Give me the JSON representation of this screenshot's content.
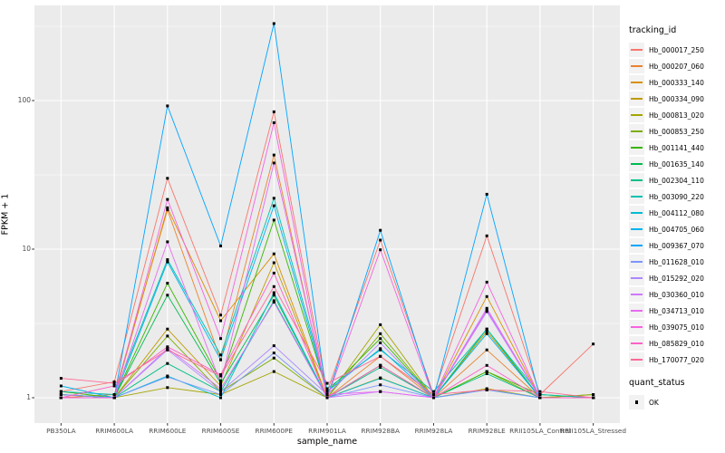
{
  "figure": {
    "xlabel": "sample_name",
    "ylabel": "FPKM + 1",
    "legend": {
      "tracking_title": "tracking_id",
      "quant_title": "quant_status",
      "ok_label": "OK"
    }
  },
  "colors": {
    "panel_bg": "#EBEBEB",
    "grid": "#FFFFFF",
    "tick_label": "#4D4D4D",
    "point": "#000000",
    "legend_key_bg": "#F2F2F2"
  },
  "chart_data": {
    "type": "line",
    "title": "",
    "xlabel": "sample_name",
    "ylabel": "FPKM + 1",
    "y_scale": "log10",
    "ylim": [
      1,
      440
    ],
    "y_ticks": [
      1,
      10,
      100
    ],
    "y_minor_ticks": [
      3.162,
      31.62,
      316.2
    ],
    "grid": true,
    "legend_position": "right",
    "point_marker": "black-square",
    "categories": [
      "PB350LA",
      "RRIM600LA",
      "RRIM600LE",
      "RRIM600SE",
      "RRIM600PE",
      "RRIM901LA",
      "RRIM928BA",
      "RRIM928LA",
      "RRIM928LE",
      "RRII105LA_Control",
      "RRII105LA_Stressed"
    ],
    "series": [
      {
        "name": "Hb_000017_250",
        "color": "#F8766D",
        "values": [
          1.1,
          1.28,
          30.0,
          3.6,
          84.0,
          1.1,
          11.5,
          1.05,
          12.3,
          1.05,
          2.3
        ]
      },
      {
        "name": "Hb_000207_060",
        "color": "#EA8331",
        "values": [
          1.0,
          1.05,
          18.4,
          1.8,
          43.0,
          1.0,
          1.9,
          1.0,
          2.1,
          1.0,
          1.0
        ]
      },
      {
        "name": "Hb_000333_140",
        "color": "#D89000",
        "values": [
          1.05,
          1.0,
          19.0,
          3.3,
          9.3,
          1.0,
          1.65,
          1.0,
          4.8,
          1.0,
          1.0
        ]
      },
      {
        "name": "Hb_000334_090",
        "color": "#C09B00",
        "values": [
          1.0,
          1.0,
          2.9,
          1.2,
          8.1,
          1.0,
          1.36,
          1.0,
          2.8,
          1.0,
          1.0
        ]
      },
      {
        "name": "Hb_000813_020",
        "color": "#A3A500",
        "values": [
          1.0,
          1.0,
          1.17,
          1.05,
          1.5,
          1.0,
          3.1,
          1.0,
          1.15,
          1.0,
          1.05
        ]
      },
      {
        "name": "Hb_000853_250",
        "color": "#7CAE00",
        "values": [
          1.05,
          1.0,
          2.6,
          1.1,
          1.85,
          1.0,
          2.7,
          1.0,
          1.5,
          1.0,
          1.05
        ]
      },
      {
        "name": "Hb_001141_440",
        "color": "#39B600",
        "values": [
          1.1,
          1.0,
          5.9,
          1.3,
          15.7,
          1.1,
          2.5,
          1.0,
          1.5,
          1.05,
          1.0
        ]
      },
      {
        "name": "Hb_001635_140",
        "color": "#00BB4E",
        "values": [
          1.05,
          1.0,
          4.9,
          1.25,
          4.9,
          1.0,
          1.65,
          1.0,
          2.9,
          1.0,
          1.0
        ]
      },
      {
        "name": "Hb_002304_110",
        "color": "#00C087",
        "values": [
          1.0,
          1.0,
          1.7,
          1.1,
          4.5,
          1.0,
          1.6,
          1.0,
          1.45,
          1.0,
          1.0
        ]
      },
      {
        "name": "Hb_003090_220",
        "color": "#00C0B2",
        "values": [
          1.1,
          1.05,
          8.5,
          1.94,
          22.0,
          1.15,
          2.1,
          1.1,
          2.9,
          1.05,
          1.0
        ]
      },
      {
        "name": "Hb_004112_080",
        "color": "#00BDD2",
        "values": [
          1.0,
          1.0,
          1.4,
          1.0,
          5.1,
          1.0,
          1.35,
          1.0,
          1.13,
          1.0,
          1.0
        ]
      },
      {
        "name": "Hb_004705_060",
        "color": "#00B4EF",
        "values": [
          1.2,
          1.0,
          8.2,
          1.8,
          19.6,
          1.1,
          2.14,
          1.0,
          2.7,
          1.0,
          1.0
        ]
      },
      {
        "name": "Hb_009367_070",
        "color": "#00A5FF",
        "values": [
          1.0,
          1.0,
          92.0,
          10.5,
          330.0,
          1.0,
          13.4,
          1.0,
          23.4,
          1.0,
          1.0
        ]
      },
      {
        "name": "Hb_011628_010",
        "color": "#7C96FF",
        "values": [
          1.05,
          1.0,
          1.38,
          1.05,
          2.0,
          1.0,
          1.22,
          1.0,
          1.13,
          1.0,
          1.0
        ]
      },
      {
        "name": "Hb_015292_020",
        "color": "#AC88FF",
        "values": [
          1.0,
          1.0,
          2.1,
          1.1,
          2.24,
          1.05,
          2.34,
          1.0,
          3.8,
          1.0,
          1.0
        ]
      },
      {
        "name": "Hb_030360_010",
        "color": "#CF78FF",
        "values": [
          1.0,
          1.0,
          2.15,
          1.15,
          4.4,
          1.0,
          1.1,
          1.0,
          4.0,
          1.0,
          1.0
        ]
      },
      {
        "name": "Hb_034713_010",
        "color": "#E76BF3",
        "values": [
          1.0,
          1.0,
          11.2,
          1.25,
          38.0,
          1.05,
          1.1,
          1.0,
          3.9,
          1.0,
          1.0
        ]
      },
      {
        "name": "Hb_039075_010",
        "color": "#F763E0",
        "values": [
          1.0,
          1.0,
          21.6,
          2.5,
          71.0,
          1.0,
          9.9,
          1.0,
          6.0,
          1.0,
          1.0
        ]
      },
      {
        "name": "Hb_085829_010",
        "color": "#FF61C7",
        "values": [
          1.0,
          1.2,
          2.2,
          1.43,
          6.9,
          1.0,
          1.65,
          1.0,
          1.65,
          1.0,
          1.0
        ]
      },
      {
        "name": "Hb_170077_020",
        "color": "#FF6A98",
        "values": [
          1.35,
          1.25,
          2.1,
          1.4,
          5.6,
          1.25,
          1.9,
          1.05,
          1.13,
          1.1,
          1.0
        ]
      }
    ],
    "quant_status": {
      "label": "OK",
      "marker": "black-square"
    }
  }
}
